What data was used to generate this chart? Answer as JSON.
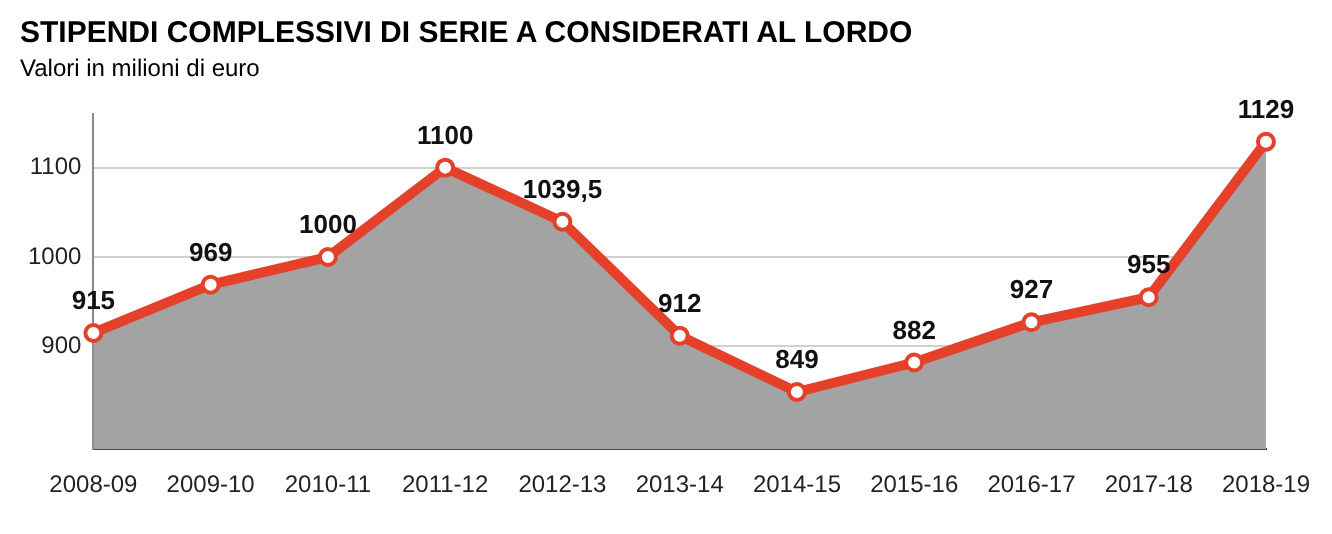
{
  "chart_data": {
    "type": "area",
    "title": "STIPENDI COMPLESSIVI DI SERIE A CONSIDERATI AL LORDO",
    "subtitle": "Valori in milioni di euro",
    "categories": [
      "2008-09",
      "2009-10",
      "2010-11",
      "2011-12",
      "2012-13",
      "2013-14",
      "2014-15",
      "2015-16",
      "2016-17",
      "2017-18",
      "2018-19"
    ],
    "series": [
      {
        "color": "#e5402a",
        "values": [
          915,
          969,
          1000,
          1100,
          1039.5,
          912,
          849,
          882,
          927,
          955,
          1129
        ],
        "value_labels": [
          "915",
          "969",
          "1000",
          "1100",
          "1039,5",
          "912",
          "849",
          "882",
          "927",
          "955",
          "1129"
        ]
      }
    ],
    "ylim": [
      785,
      1160
    ],
    "yticks": [
      900,
      1000,
      1100
    ],
    "grid": "y",
    "marker": "circle",
    "legend": false
  }
}
